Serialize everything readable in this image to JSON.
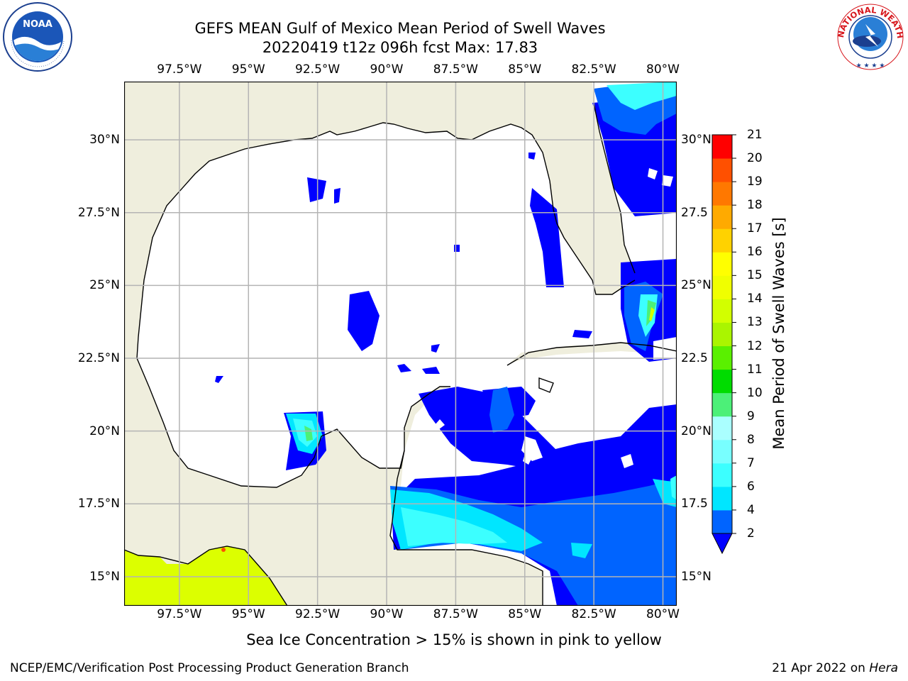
{
  "header": {
    "title": "GEFS MEAN Gulf of Mexico Mean Period of Swell Waves",
    "subtitle": "20220419 t12z 096h fcst   Max: 17.83"
  },
  "logos": {
    "left": {
      "name": "noaa-logo",
      "text": "NOAA"
    },
    "right": {
      "name": "nws-logo",
      "text": "NATIONAL WEATHER SERVICE"
    }
  },
  "map": {
    "extent": {
      "lon": [
        -99.5,
        -79.5
      ],
      "lat": [
        14,
        32
      ]
    },
    "lon_ticks": [
      {
        "value": -97.5,
        "label": "97.5°W"
      },
      {
        "value": -95,
        "label": "95°W"
      },
      {
        "value": -92.5,
        "label": "92.5°W"
      },
      {
        "value": -90,
        "label": "90°W"
      },
      {
        "value": -87.5,
        "label": "87.5°W"
      },
      {
        "value": -85,
        "label": "85°W"
      },
      {
        "value": -82.5,
        "label": "82.5°W"
      },
      {
        "value": -80,
        "label": "80°W"
      }
    ],
    "lat_ticks": [
      {
        "value": 30,
        "left": "30°N",
        "right": "30°N"
      },
      {
        "value": 27.5,
        "left": "27.5°N",
        "right": "27.5"
      },
      {
        "value": 25,
        "left": "25°N",
        "right": "25°N"
      },
      {
        "value": 22.5,
        "left": "22.5°N",
        "right": "22.5"
      },
      {
        "value": 20,
        "left": "20°N",
        "right": "20°N"
      },
      {
        "value": 17.5,
        "left": "17.5°N",
        "right": "17.5"
      },
      {
        "value": 15,
        "left": "15°N",
        "right": "15°N"
      }
    ],
    "colors": {
      "land": "#efeedd",
      "water": "#ffffff",
      "grid": "#b4b4b4",
      "coast": "#000000",
      "ice": "#dcff00"
    }
  },
  "colorbar": {
    "label": "Mean Period of Swell Waves [s]",
    "ticks": [
      "2",
      "4",
      "6",
      "7",
      "8",
      "9",
      "10",
      "11",
      "12",
      "13",
      "14",
      "15",
      "16",
      "17",
      "18",
      "19",
      "20",
      "21"
    ],
    "colors": [
      "#0064ff",
      "#00e6ff",
      "#3cffff",
      "#78ffff",
      "#aaffff",
      "#4cf078",
      "#00dc00",
      "#5af000",
      "#aaf500",
      "#d2ff00",
      "#f0ff00",
      "#ffff00",
      "#ffd200",
      "#ffaa00",
      "#ff7800",
      "#ff5000",
      "#ff0000"
    ],
    "under_color": "#0000ff"
  },
  "notes": {
    "ice": "Sea Ice Concentration > 15% is shown in pink to yellow"
  },
  "footer": {
    "left": "NCEP/EMC/Verification Post Processing Product Generation Branch",
    "date": "21 Apr 2022 on ",
    "host": "Hera"
  }
}
